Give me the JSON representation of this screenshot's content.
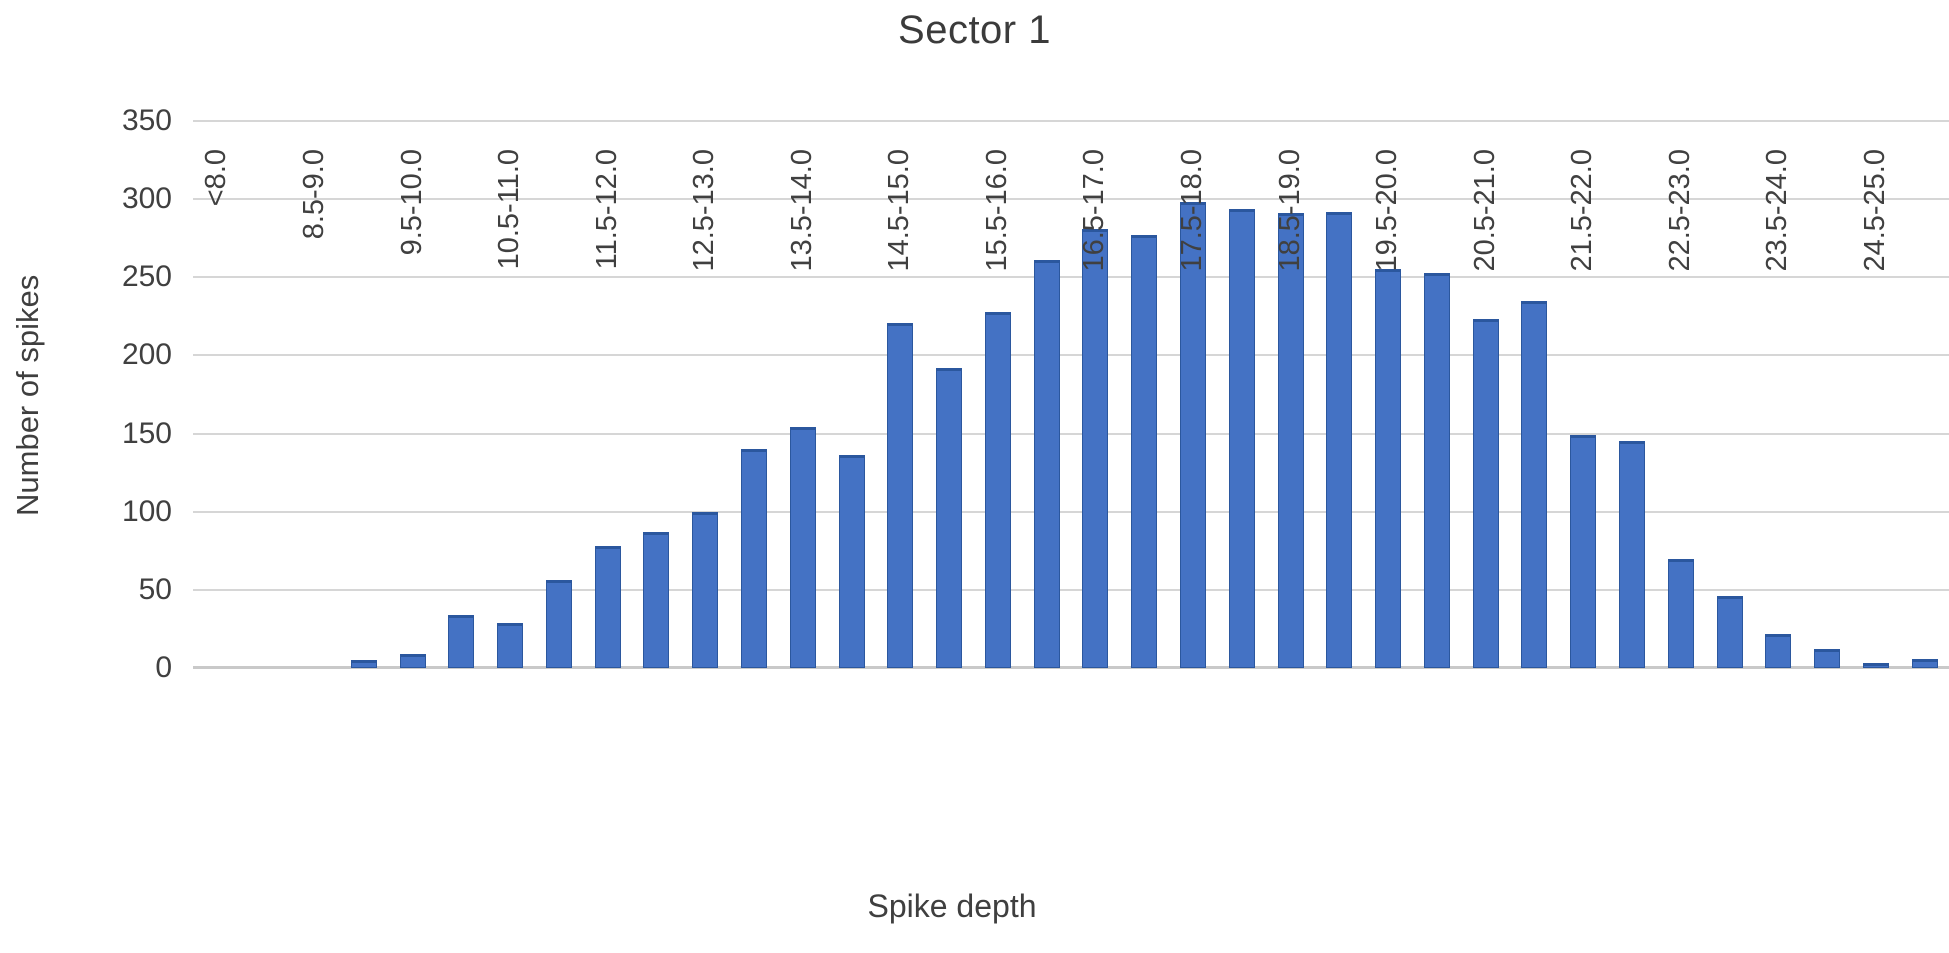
{
  "chart_data": {
    "type": "bar",
    "title": "Sector 1",
    "xlabel": "Spike depth",
    "ylabel": "Number of spikes",
    "ylim": [
      0,
      350
    ],
    "yticks": [
      0,
      50,
      100,
      150,
      200,
      250,
      300,
      350
    ],
    "grid": true,
    "legend": "none",
    "bar_color": "#4472c4",
    "bar_border_color": "#2b579e",
    "categories": [
      "<8.0",
      "",
      "8.5-9.0",
      "",
      "9.5-10.0",
      "",
      "10.5-11.0",
      "",
      "11.5-12.0",
      "",
      "12.5-13.0",
      "",
      "13.5-14.0",
      "",
      "14.5-15.0",
      "",
      "15.5-16.0",
      "",
      "16.5-17.0",
      "",
      "17.5-18.0",
      "",
      "18.5-19.0",
      "",
      "19.5-20.0",
      "",
      "20.5-21.0",
      "",
      "21.5-22.0",
      "",
      "22.5-23.0",
      "",
      "23.5-24.0",
      "",
      "24.5-25.0",
      ""
    ],
    "values": [
      0,
      0,
      0,
      5,
      9,
      34,
      29,
      56,
      78,
      87,
      100,
      140,
      154,
      136,
      221,
      192,
      228,
      261,
      281,
      277,
      298,
      294,
      291,
      292,
      255,
      253,
      223,
      235,
      149,
      145,
      70,
      46,
      22,
      12,
      3,
      6
    ]
  }
}
